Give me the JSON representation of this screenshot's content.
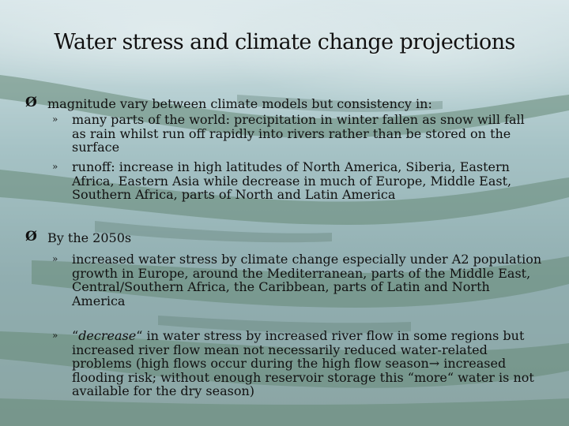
{
  "title": "Water stress and climate change projections",
  "icons": {
    "main_bullet": "arrow-bullet-icon",
    "sub_bullet": "double-chevron-icon"
  },
  "bullet1": {
    "glyph": "Ø",
    "text": "magnitude vary between climate models but consistency in:",
    "subs": [
      {
        "glyph": "»",
        "text": "many parts of the world: precipitation in winter fallen as snow will fall as rain whilst run off rapidly into rivers rather than be stored on the surface"
      },
      {
        "glyph": "»",
        "text": "runoff: increase in high latitudes of North America, Siberia, Eastern Africa, Eastern Asia while decrease in much of Europe, Middle East, Southern Africa, parts of North and Latin America"
      }
    ]
  },
  "bullet2": {
    "glyph": "Ø",
    "text": "By the 2050s",
    "subs": [
      {
        "glyph": "»",
        "text": "increased water stress by climate change especially under A2 population growth in Europe, around the Mediterranean, parts of the Middle East, Central/Southern Africa, the Caribbean, parts of Latin and North America"
      },
      {
        "glyph": "»",
        "open_quote": "“",
        "emph": "decrease",
        "text_after": "“ in water stress by increased river flow in some regions but increased river flow mean not necessarily reduced water-related problems (high flows occur during the high flow season",
        "arrow": "→",
        "text_end": " increased flooding risk; without enough reservoir storage this “more“ water is not available for the dry season)"
      }
    ]
  }
}
